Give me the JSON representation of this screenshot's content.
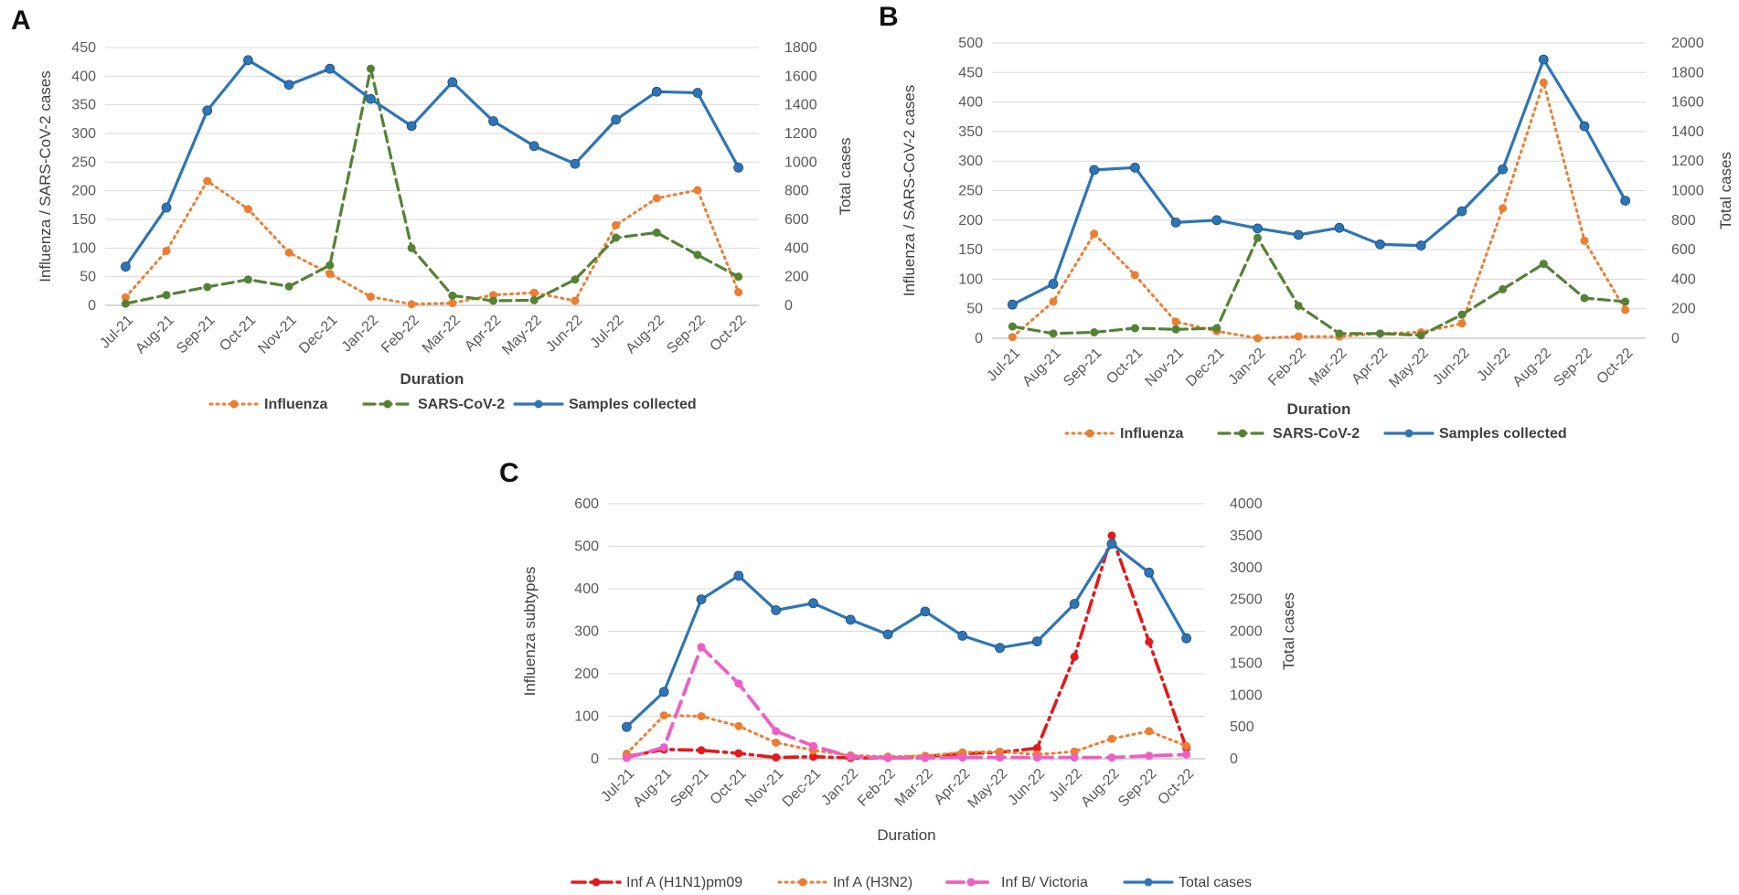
{
  "months": [
    "Jul-21",
    "Aug-21",
    "Sep-21",
    "Oct-21",
    "Nov-21",
    "Dec-21",
    "Jan-22",
    "Feb-22",
    "Mar-22",
    "Apr-22",
    "May-22",
    "Jun-22",
    "Jul-22",
    "Aug-22",
    "Sep-22",
    "Oct-22"
  ],
  "colors": {
    "influenza": "#ED7D31",
    "sars": "#548235",
    "samples": "#2E75B6",
    "h1n1": "#E31A1C",
    "h3n2": "#ED7D31",
    "victoria": "#EE5FC4"
  },
  "chart_data": [
    {
      "panel": "A",
      "type": "line",
      "xlabel": "Duration",
      "ylabel_left": "Influenza / SARS-CoV-2 cases",
      "ylabel_right": "Total cases",
      "ylim_left": [
        0,
        450
      ],
      "ylim_right": [
        0,
        1800
      ],
      "yticks_left": [
        0,
        50,
        100,
        150,
        200,
        250,
        300,
        350,
        400,
        450
      ],
      "yticks_right": [
        0,
        200,
        400,
        600,
        800,
        1000,
        1200,
        1400,
        1600,
        1800
      ],
      "series": [
        {
          "name": "Influenza",
          "axis": "left",
          "style": "dotted",
          "color": "#ED7D31",
          "values": [
            14,
            95,
            217,
            168,
            92,
            55,
            15,
            2,
            4,
            18,
            22,
            8,
            140,
            187,
            201,
            23
          ]
        },
        {
          "name": "SARS-CoV-2",
          "axis": "left",
          "style": "dashed",
          "color": "#548235",
          "values": [
            3,
            18,
            32,
            45,
            33,
            70,
            413,
            100,
            17,
            8,
            9,
            45,
            118,
            127,
            88,
            50
          ]
        },
        {
          "name": "Samples collected",
          "axis": "right",
          "style": "solid",
          "color": "#2E75B6",
          "values": [
            270,
            683,
            1360,
            1712,
            1540,
            1652,
            1441,
            1252,
            1558,
            1286,
            1112,
            988,
            1296,
            1492,
            1484,
            962
          ]
        }
      ]
    },
    {
      "panel": "B",
      "type": "line",
      "xlabel": "Duration",
      "ylabel_left": "Influenza / SARS-CoV-2  cases",
      "ylabel_right": "Total cases",
      "ylim_left": [
        0,
        500
      ],
      "ylim_right": [
        0,
        2000
      ],
      "yticks_left": [
        0,
        50,
        100,
        150,
        200,
        250,
        300,
        350,
        400,
        450,
        500
      ],
      "yticks_right": [
        0,
        200,
        400,
        600,
        800,
        1000,
        1200,
        1400,
        1600,
        1800,
        2000
      ],
      "series": [
        {
          "name": "Influenza",
          "axis": "left",
          "style": "dotted",
          "color": "#ED7D31",
          "values": [
            2,
            62,
            177,
            107,
            28,
            12,
            0,
            3,
            3,
            8,
            10,
            25,
            220,
            433,
            165,
            48
          ]
        },
        {
          "name": "SARS-CoV-2",
          "axis": "left",
          "style": "dashed",
          "color": "#548235",
          "values": [
            20,
            8,
            10,
            17,
            15,
            17,
            170,
            55,
            8,
            8,
            5,
            40,
            83,
            126,
            68,
            62
          ]
        },
        {
          "name": "Samples collected",
          "axis": "right",
          "style": "solid",
          "color": "#2E75B6",
          "values": [
            228,
            368,
            1140,
            1156,
            784,
            800,
            744,
            700,
            748,
            636,
            628,
            860,
            1144,
            1888,
            1436,
            932
          ]
        }
      ]
    },
    {
      "panel": "C",
      "type": "line",
      "xlabel": "Duration",
      "ylabel_left": "Influenza subtypes",
      "ylabel_right": "Total cases",
      "ylim_left": [
        0,
        600
      ],
      "ylim_right": [
        0,
        4000
      ],
      "yticks_left": [
        0,
        100,
        200,
        300,
        400,
        500,
        600
      ],
      "yticks_right": [
        0,
        500,
        1000,
        1500,
        2000,
        2500,
        3000,
        3500,
        4000
      ],
      "series": [
        {
          "name": "Inf A (H1N1)pm09",
          "axis": "left",
          "style": "dashdot",
          "color": "#E31A1C",
          "values": [
            5,
            22,
            20,
            13,
            3,
            5,
            2,
            2,
            5,
            12,
            15,
            25,
            240,
            525,
            275,
            25
          ]
        },
        {
          "name": "Inf A (H3N2)",
          "axis": "left",
          "style": "dotted",
          "color": "#ED7D31",
          "values": [
            12,
            102,
            100,
            77,
            38,
            20,
            8,
            5,
            7,
            15,
            17,
            10,
            17,
            47,
            65,
            30
          ]
        },
        {
          "name": "Inf B/ Victoria",
          "axis": "left",
          "style": "longdash",
          "color": "#EE5FC4",
          "values": [
            2,
            27,
            263,
            177,
            65,
            30,
            5,
            2,
            2,
            3,
            3,
            3,
            3,
            3,
            7,
            10
          ]
        },
        {
          "name": "Total cases",
          "axis": "right",
          "style": "solid",
          "color": "#2E75B6",
          "values": [
            500,
            1050,
            2500,
            2870,
            2330,
            2440,
            2180,
            1950,
            2310,
            1930,
            1740,
            1840,
            2430,
            3370,
            2920,
            1890
          ]
        }
      ]
    }
  ],
  "panels": {
    "A": {
      "letter": "A"
    },
    "B": {
      "letter": "B"
    },
    "C": {
      "letter": "C"
    }
  }
}
